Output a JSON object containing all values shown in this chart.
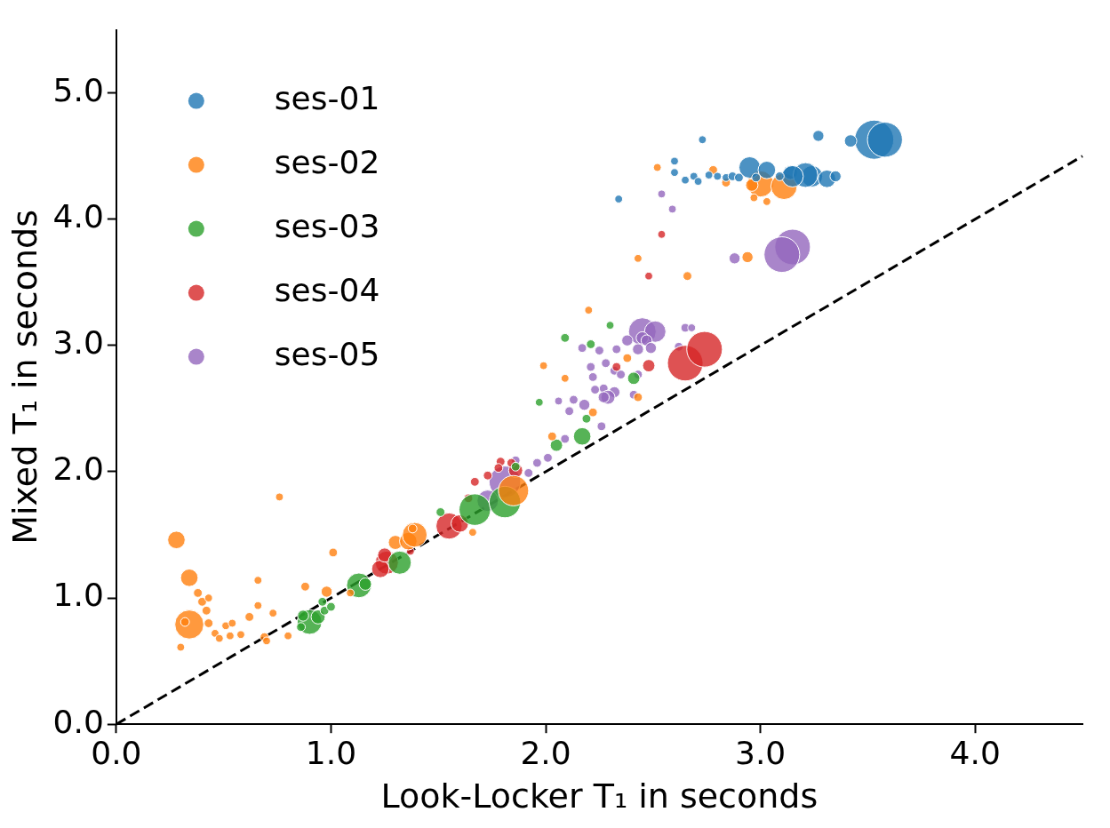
{
  "chart_data": {
    "type": "bubble",
    "xlabel": "Look-Locker T₁ in seconds",
    "ylabel": "Mixed T₁ in seconds",
    "xlim": [
      0,
      4.5
    ],
    "ylim": [
      0,
      5.5
    ],
    "xticks": [
      {
        "value": 0,
        "label": "0.0"
      },
      {
        "value": 1,
        "label": "1.0"
      },
      {
        "value": 2,
        "label": "2.0"
      },
      {
        "value": 3,
        "label": "3.0"
      },
      {
        "value": 4,
        "label": "4.0"
      }
    ],
    "yticks": [
      {
        "value": 0,
        "label": "0.0"
      },
      {
        "value": 1,
        "label": "1.0"
      },
      {
        "value": 2,
        "label": "2.0"
      },
      {
        "value": 3,
        "label": "3.0"
      },
      {
        "value": 4,
        "label": "4.0"
      },
      {
        "value": 5,
        "label": "5.0"
      }
    ],
    "grid": false,
    "legend": "top left",
    "marker": "circle",
    "series": [
      {
        "name": "ses-01",
        "color": "#1f77b4",
        "x": [
          3.53,
          3.58,
          3.42,
          3.27,
          2.73,
          2.34,
          2.6,
          2.6,
          2.65,
          2.69,
          2.71,
          2.76,
          2.8,
          2.84,
          2.95,
          3.03,
          3.14,
          3.24,
          3.21,
          3.15,
          3.31,
          3.35,
          2.87,
          2.9,
          2.98,
          3.09
        ],
        "values": [
          4.63,
          4.63,
          4.62,
          4.66,
          4.63,
          4.16,
          4.46,
          4.37,
          4.31,
          4.34,
          4.3,
          4.35,
          4.34,
          4.33,
          4.41,
          4.39,
          4.37,
          4.34,
          4.35,
          4.34,
          4.32,
          4.34,
          4.34,
          4.33,
          4.33,
          4.34
        ],
        "sizes": [
          1,
          0.8,
          0.1,
          0.08,
          0.04,
          0.04,
          0.04,
          0.04,
          0.04,
          0.04,
          0.04,
          0.04,
          0.04,
          0.04,
          0.3,
          0.2,
          0.13,
          0.3,
          0.4,
          0.3,
          0.2,
          0.08,
          0.05,
          0.05,
          0.05,
          0.05
        ]
      },
      {
        "name": "ses-02",
        "color": "#ff7f0e",
        "x": [
          0.28,
          0.34,
          0.34,
          0.38,
          0.4,
          0.43,
          0.42,
          0.43,
          0.32,
          0.3,
          0.46,
          0.48,
          0.51,
          0.54,
          0.53,
          0.58,
          0.62,
          0.66,
          0.66,
          0.69,
          0.7,
          0.73,
          0.76,
          0.8,
          0.88,
          0.98,
          1.01,
          1.09,
          1.3,
          1.36,
          1.39,
          1.38,
          1.66,
          1.85,
          2.52,
          2.78,
          3.0,
          3.11,
          2.96,
          2.84,
          2.97,
          3.03,
          2.94,
          2.43,
          2.66,
          2.2,
          1.99,
          2.09,
          2.38,
          2.43,
          2.22,
          2.03
        ],
        "values": [
          1.46,
          1.16,
          0.79,
          1.04,
          0.97,
          1.0,
          0.9,
          0.8,
          0.81,
          0.61,
          0.72,
          0.68,
          0.78,
          0.8,
          0.7,
          0.71,
          0.85,
          0.94,
          1.14,
          0.69,
          0.66,
          0.88,
          1.8,
          0.7,
          1.09,
          1.05,
          1.36,
          1.04,
          1.44,
          1.45,
          1.5,
          1.55,
          1.52,
          1.85,
          4.41,
          4.39,
          4.28,
          4.26,
          4.27,
          4.29,
          4.17,
          4.14,
          3.7,
          3.69,
          3.55,
          3.28,
          2.84,
          2.74,
          2.9,
          2.59,
          2.47,
          2.28
        ],
        "sizes": [
          0.2,
          0.2,
          0.55,
          0.05,
          0.05,
          0.04,
          0.05,
          0.05,
          0.05,
          0.04,
          0.04,
          0.04,
          0.04,
          0.04,
          0.04,
          0.04,
          0.05,
          0.04,
          0.04,
          0.05,
          0.04,
          0.04,
          0.04,
          0.04,
          0.05,
          0.08,
          0.05,
          0.04,
          0.13,
          0.2,
          0.4,
          0.05,
          0.04,
          0.6,
          0.04,
          0.05,
          0.45,
          0.45,
          0.1,
          0.05,
          0.04,
          0.04,
          0.08,
          0.04,
          0.05,
          0.04,
          0.04,
          0.04,
          0.05,
          0.05,
          0.05,
          0.05
        ]
      },
      {
        "name": "ses-03",
        "color": "#2ca02c",
        "x": [
          0.9,
          0.94,
          0.87,
          0.97,
          0.96,
          1.0,
          0.86,
          1.13,
          1.16,
          1.32,
          1.67,
          1.81,
          1.51,
          2.17,
          2.05,
          1.97,
          2.41,
          2.19,
          2.3,
          2.09,
          2.21,
          1.86
        ],
        "values": [
          0.81,
          0.85,
          0.86,
          0.9,
          0.97,
          0.93,
          0.77,
          1.1,
          1.11,
          1.28,
          1.7,
          1.76,
          1.68,
          2.28,
          2.21,
          2.55,
          2.74,
          2.42,
          3.16,
          3.06,
          3.01,
          2.04
        ],
        "sizes": [
          0.4,
          0.13,
          0.08,
          0.05,
          0.05,
          0.05,
          0.05,
          0.4,
          0.1,
          0.35,
          0.65,
          0.65,
          0.05,
          0.2,
          0.1,
          0.04,
          0.1,
          0.05,
          0.04,
          0.05,
          0.05,
          0.05
        ]
      },
      {
        "name": "ses-04",
        "color": "#d62728",
        "x": [
          2.65,
          2.74,
          2.48,
          2.33,
          2.54,
          2.48,
          1.55,
          1.6,
          1.26,
          1.23,
          1.73,
          1.67,
          1.64,
          1.86,
          1.79,
          1.78,
          1.84,
          1.25,
          1.37
        ],
        "values": [
          2.86,
          2.97,
          2.84,
          2.83,
          3.88,
          3.55,
          1.57,
          1.59,
          1.28,
          1.23,
          1.97,
          1.92,
          1.79,
          2.01,
          2.08,
          2.03,
          2.07,
          1.34,
          1.37
        ],
        "sizes": [
          0.83,
          0.83,
          0.1,
          0.05,
          0.04,
          0.04,
          0.45,
          0.2,
          0.35,
          0.2,
          0.05,
          0.05,
          0.05,
          0.13,
          0.05,
          0.05,
          0.05,
          0.13,
          0.04
        ]
      },
      {
        "name": "ses-05",
        "color": "#9467bd",
        "x": [
          3.15,
          3.1,
          2.88,
          2.54,
          2.59,
          2.45,
          2.51,
          2.45,
          2.47,
          2.43,
          2.49,
          2.38,
          2.33,
          2.65,
          2.68,
          2.62,
          2.17,
          2.25,
          2.21,
          2.28,
          2.22,
          2.32,
          2.35,
          2.43,
          2.27,
          2.32,
          2.29,
          2.27,
          2.23,
          2.13,
          2.06,
          2.11,
          2.18,
          2.41,
          1.81,
          1.73,
          1.92,
          1.96,
          2.01,
          2.09,
          2.26,
          1.86
        ],
        "values": [
          3.78,
          3.72,
          3.69,
          4.2,
          4.08,
          3.11,
          3.11,
          3.06,
          3.04,
          2.97,
          2.98,
          3.04,
          2.97,
          3.14,
          3.14,
          2.99,
          2.98,
          2.96,
          2.83,
          2.86,
          2.75,
          2.8,
          2.77,
          2.77,
          2.66,
          2.63,
          2.59,
          2.59,
          2.65,
          2.57,
          2.56,
          2.48,
          2.53,
          2.61,
          1.92,
          1.77,
          1.99,
          2.07,
          2.11,
          2.26,
          2.36,
          2.09
        ],
        "sizes": [
          0.83,
          0.83,
          0.08,
          0.04,
          0.04,
          0.5,
          0.3,
          0.1,
          0.08,
          0.08,
          0.08,
          0.08,
          0.05,
          0.05,
          0.04,
          0.05,
          0.05,
          0.05,
          0.05,
          0.05,
          0.05,
          0.05,
          0.05,
          0.05,
          0.05,
          0.08,
          0.13,
          0.08,
          0.05,
          0.05,
          0.04,
          0.05,
          0.08,
          0.05,
          0.65,
          0.3,
          0.05,
          0.05,
          0.05,
          0.05,
          0.05,
          0.05
        ]
      },
      {
        "type": "line",
        "color": "#000000",
        "line_style": "dashed",
        "marker": "none",
        "x": [
          0,
          4.5
        ],
        "values": [
          0,
          4.5
        ]
      }
    ]
  }
}
